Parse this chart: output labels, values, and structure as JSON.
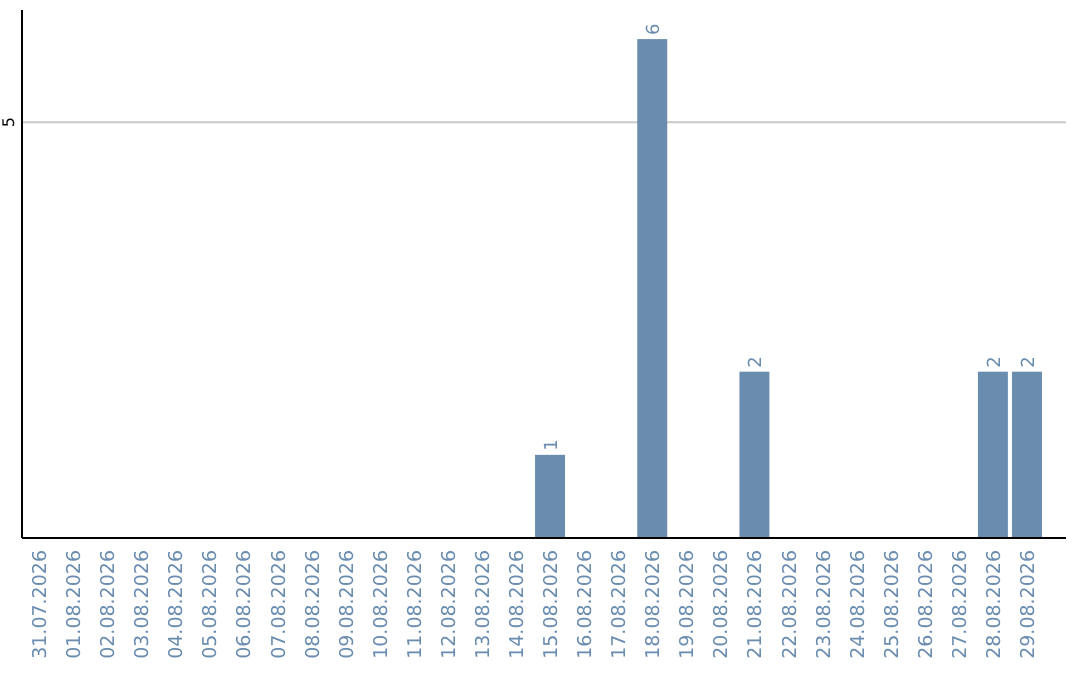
{
  "chart_data": {
    "type": "bar",
    "categories": [
      "31.07.2026",
      "01.08.2026",
      "02.08.2026",
      "03.08.2026",
      "04.08.2026",
      "05.08.2026",
      "06.08.2026",
      "07.08.2026",
      "08.08.2026",
      "09.08.2026",
      "10.08.2026",
      "11.08.2026",
      "12.08.2026",
      "13.08.2026",
      "14.08.2026",
      "15.08.2026",
      "16.08.2026",
      "17.08.2026",
      "18.08.2026",
      "19.08.2026",
      "20.08.2026",
      "21.08.2026",
      "22.08.2026",
      "23.08.2026",
      "24.08.2026",
      "25.08.2026",
      "26.08.2026",
      "27.08.2026",
      "28.08.2026",
      "29.08.2026"
    ],
    "values": [
      null,
      null,
      null,
      null,
      null,
      null,
      null,
      null,
      null,
      null,
      null,
      null,
      null,
      null,
      null,
      1,
      null,
      null,
      6,
      null,
      null,
      2,
      null,
      null,
      null,
      null,
      null,
      null,
      2,
      2
    ],
    "data_labels": true,
    "color": "#6a8caf",
    "ylim": [
      0,
      6.35
    ],
    "yticks": [
      5
    ],
    "grid": "y"
  }
}
